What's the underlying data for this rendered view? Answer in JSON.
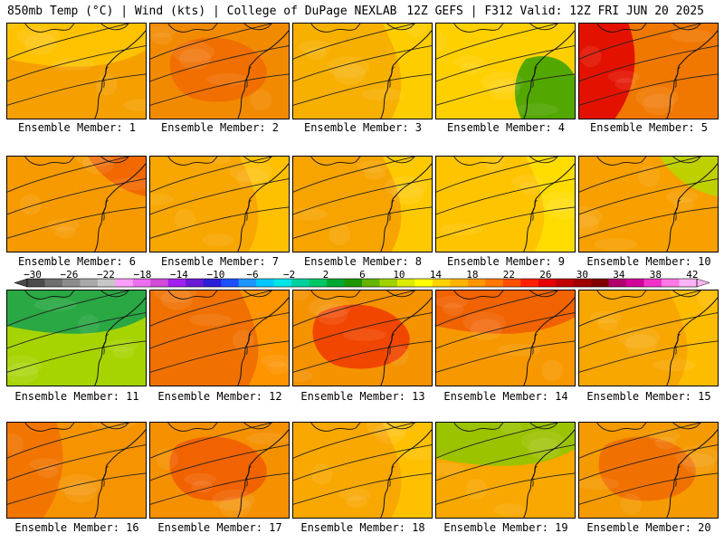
{
  "header": {
    "left": "850mb Temp (°C) | Wind (kts) | College of DuPage NEXLAB",
    "right": "12Z GEFS | F312 Valid: 12Z FRI JUN 20 2025"
  },
  "colorbar": {
    "labels": [
      "−30",
      "−26",
      "−22",
      "−18",
      "−14",
      "−10",
      "−6",
      "−2",
      "2",
      "6",
      "10",
      "14",
      "18",
      "22",
      "26",
      "30",
      "34",
      "38",
      "42"
    ],
    "colors": [
      "#4b4b4b",
      "#6e6e6e",
      "#8c8c8c",
      "#a9a9a9",
      "#c7c7c7",
      "#ff9eff",
      "#ee6ef0",
      "#d24ad8",
      "#a020f0",
      "#6a1ad2",
      "#2a1ed8",
      "#1e50ff",
      "#1e96ff",
      "#00c8ff",
      "#00e6e6",
      "#00d0a0",
      "#00c864",
      "#00a832",
      "#1e9600",
      "#64b400",
      "#a0d200",
      "#dceb00",
      "#ffff00",
      "#ffd200",
      "#ffb400",
      "#ff9600",
      "#ff7800",
      "#ff5000",
      "#ff1e00",
      "#e60000",
      "#c00000",
      "#a00000",
      "#800000",
      "#b0006e",
      "#d2009a",
      "#f032c8",
      "#ff78e6",
      "#ffb4f5"
    ]
  },
  "members": [
    {
      "label": "Ensemble Member: 1",
      "base": "#f5a000",
      "accents": [
        {
          "color": "#ffc800",
          "kind": "north"
        }
      ]
    },
    {
      "label": "Ensemble Member: 2",
      "base": "#f28a00",
      "accents": [
        {
          "color": "#f06a00",
          "kind": "center"
        }
      ]
    },
    {
      "label": "Ensemble Member: 3",
      "base": "#f7b000",
      "accents": [
        {
          "color": "#ffd200",
          "kind": "east"
        }
      ]
    },
    {
      "label": "Ensemble Member: 4",
      "base": "#ffd000",
      "accents": [
        {
          "color": "#34a000",
          "kind": "southeast"
        }
      ]
    },
    {
      "label": "Ensemble Member: 5",
      "base": "#f07800",
      "accents": [
        {
          "color": "#e00000",
          "kind": "west"
        }
      ]
    },
    {
      "label": "Ensemble Member: 6",
      "base": "#f79a00",
      "accents": [
        {
          "color": "#f06000",
          "kind": "northeast"
        }
      ]
    },
    {
      "label": "Ensemble Member: 7",
      "base": "#f8a600",
      "accents": [
        {
          "color": "#ffc400",
          "kind": "east"
        }
      ]
    },
    {
      "label": "Ensemble Member: 8",
      "base": "#f7a400",
      "accents": [
        {
          "color": "#ffd000",
          "kind": "east"
        }
      ]
    },
    {
      "label": "Ensemble Member: 9",
      "base": "#ffc400",
      "accents": [
        {
          "color": "#ffe000",
          "kind": "east"
        }
      ]
    },
    {
      "label": "Ensemble Member: 10",
      "base": "#f8a000",
      "accents": [
        {
          "color": "#b4d800",
          "kind": "northeast"
        }
      ]
    },
    {
      "label": "Ensemble Member: 11",
      "base": "#a6d400",
      "accents": [
        {
          "color": "#14a050",
          "kind": "north"
        }
      ]
    },
    {
      "label": "Ensemble Member: 12",
      "base": "#f07000",
      "accents": [
        {
          "color": "#ff9a00",
          "kind": "east"
        }
      ]
    },
    {
      "label": "Ensemble Member: 13",
      "base": "#f59200",
      "accents": [
        {
          "color": "#f03800",
          "kind": "center"
        }
      ]
    },
    {
      "label": "Ensemble Member: 14",
      "base": "#f89800",
      "accents": [
        {
          "color": "#f05800",
          "kind": "north"
        }
      ]
    },
    {
      "label": "Ensemble Member: 15",
      "base": "#f8a600",
      "accents": [
        {
          "color": "#ffc000",
          "kind": "east"
        }
      ]
    },
    {
      "label": "Ensemble Member: 16",
      "base": "#f59400",
      "accents": [
        {
          "color": "#f07000",
          "kind": "west"
        }
      ]
    },
    {
      "label": "Ensemble Member: 17",
      "base": "#f59000",
      "accents": [
        {
          "color": "#f05a00",
          "kind": "center"
        }
      ]
    },
    {
      "label": "Ensemble Member: 18",
      "base": "#f8a800",
      "accents": [
        {
          "color": "#ffc400",
          "kind": "east"
        }
      ]
    },
    {
      "label": "Ensemble Member: 19",
      "base": "#f8a800",
      "accents": [
        {
          "color": "#8cc800",
          "kind": "north"
        }
      ]
    },
    {
      "label": "Ensemble Member: 20",
      "base": "#f59a00",
      "accents": [
        {
          "color": "#f06a00",
          "kind": "center"
        }
      ]
    }
  ]
}
